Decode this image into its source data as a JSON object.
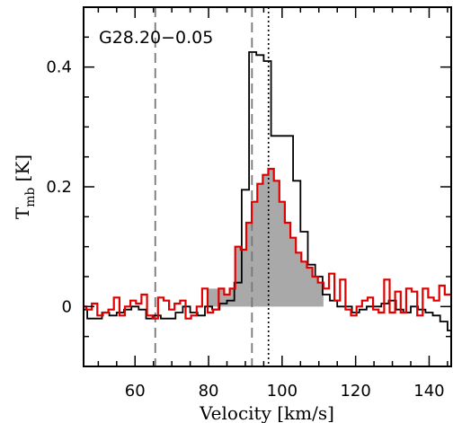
{
  "chart_data": {
    "type": "line",
    "title": "",
    "annotation": "G28.20−0.05",
    "xlabel": "Velocity [km/s]",
    "ylabel_main": "T",
    "ylabel_sub": "mb",
    "ylabel_unit": "[K]",
    "xlim": [
      46,
      146
    ],
    "ylim": [
      -0.1,
      0.5
    ],
    "xticks_major": [
      60,
      80,
      100,
      120,
      140
    ],
    "xtick_labels": [
      "60",
      "80",
      "100",
      "120",
      "140"
    ],
    "yticks_major": [
      0,
      0.2,
      0.4
    ],
    "ytick_labels": [
      "0",
      "0.2",
      "0.4"
    ],
    "grid": false,
    "colors": {
      "black_series": "#000000",
      "red_series": "#e00000",
      "fill": "#a9a9a9",
      "dashed": "#777777"
    },
    "vertical_lines": [
      {
        "x": 65.5,
        "style": "dashed"
      },
      {
        "x": 91.8,
        "style": "dashed"
      },
      {
        "x": 96.3,
        "style": "dotted"
      }
    ],
    "fill_range": [
      79.5,
      112.5
    ],
    "series": [
      {
        "style": "black-step",
        "x": [
          46,
          48,
          50,
          52,
          54,
          56,
          58,
          60,
          62,
          64,
          66,
          68,
          70,
          72,
          74,
          76,
          78,
          80,
          82,
          84,
          86,
          88,
          90,
          92,
          94,
          96,
          98,
          100,
          102,
          104,
          106,
          108,
          110,
          112,
          114,
          116,
          118,
          120,
          122,
          124,
          126,
          128,
          130,
          132,
          134,
          136,
          138,
          140,
          142,
          144,
          146
        ],
        "y": [
          -0.005,
          -0.02,
          -0.02,
          -0.01,
          -0.015,
          -0.01,
          -0.005,
          0.0,
          -0.005,
          -0.02,
          -0.015,
          -0.02,
          -0.02,
          -0.01,
          0.0,
          -0.01,
          -0.015,
          0.0,
          -0.005,
          0.005,
          0.01,
          0.04,
          0.195,
          0.425,
          0.42,
          0.41,
          0.285,
          0.285,
          0.285,
          0.21,
          0.125,
          0.07,
          0.05,
          0.02,
          0.01,
          0.0,
          0.0,
          -0.01,
          -0.005,
          0.0,
          0.0,
          0.005,
          0.01,
          -0.005,
          -0.01,
          0.0,
          -0.005,
          -0.01,
          -0.015,
          -0.025,
          -0.04
        ]
      },
      {
        "style": "red-step",
        "x": [
          46,
          47.5,
          49,
          50.5,
          52,
          53.5,
          55,
          56.5,
          58,
          59.5,
          61,
          62.5,
          64,
          65.5,
          67,
          68.5,
          70,
          71.5,
          73,
          74.5,
          76,
          77.5,
          79,
          80.5,
          82,
          83.5,
          85,
          86.5,
          88,
          89.5,
          91,
          92.5,
          94,
          95.5,
          97,
          98.5,
          100,
          101.5,
          103,
          104.5,
          106,
          107.5,
          109,
          110.5,
          112,
          113.5,
          115,
          116.5,
          118,
          119.5,
          121,
          122.5,
          124,
          125.5,
          127,
          128.5,
          130,
          131.5,
          133,
          134.5,
          136,
          137.5,
          139,
          140.5,
          142,
          143.5,
          145
        ],
        "y": [
          0.0,
          -0.005,
          0.005,
          -0.015,
          -0.01,
          -0.005,
          0.015,
          -0.015,
          0.0,
          0.01,
          0.005,
          0.02,
          -0.015,
          -0.02,
          0.015,
          0.01,
          -0.005,
          0.005,
          0.01,
          -0.02,
          -0.015,
          0.0,
          0.03,
          -0.01,
          -0.005,
          0.03,
          0.02,
          0.03,
          0.1,
          0.095,
          0.14,
          0.175,
          0.205,
          0.22,
          0.23,
          0.21,
          0.175,
          0.14,
          0.115,
          0.09,
          0.075,
          0.065,
          0.05,
          0.04,
          0.03,
          0.055,
          0.01,
          0.045,
          -0.005,
          -0.015,
          0.0,
          0.01,
          0.015,
          -0.005,
          -0.01,
          0.045,
          -0.01,
          0.025,
          -0.01,
          0.03,
          0.025,
          -0.015,
          0.03,
          0.015,
          0.01,
          0.035,
          0.02
        ]
      }
    ]
  }
}
